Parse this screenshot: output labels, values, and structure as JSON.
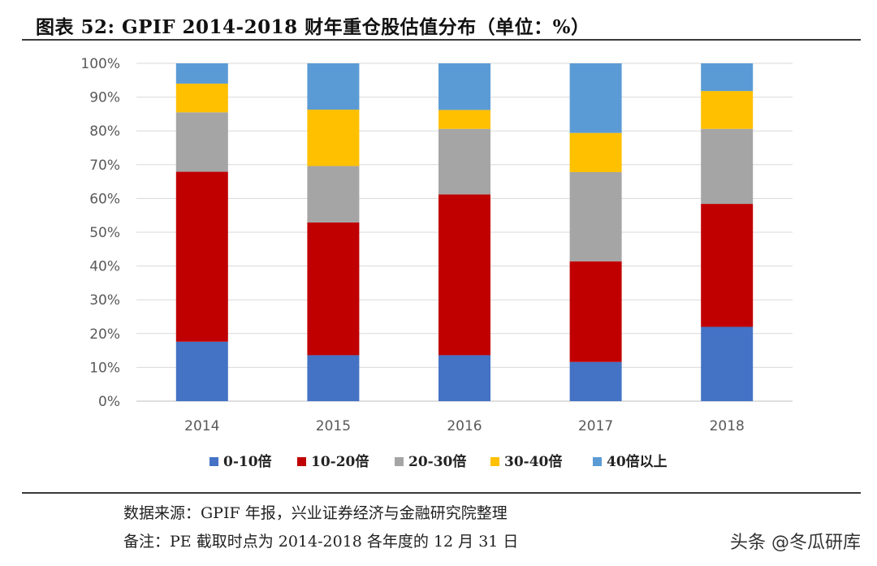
{
  "figure": {
    "title": "图表 52: GPIF 2014-2018 财年重仓股估值分布（单位：%）",
    "source": "数据来源：GPIF 年报，兴业证券经济与金融研究院整理",
    "note": "备注：PE 截取时点为 2014-2018 各年度的 12 月 31 日",
    "watermark": "头条 @冬瓜研库"
  },
  "chart_data": {
    "type": "bar",
    "stacked": true,
    "percent": true,
    "title": "",
    "xlabel": "",
    "ylabel": "",
    "categories": [
      "2014",
      "2015",
      "2016",
      "2017",
      "2018"
    ],
    "ylim": [
      0,
      100
    ],
    "yticks": [
      "0%",
      "10%",
      "20%",
      "30%",
      "40%",
      "50%",
      "60%",
      "70%",
      "80%",
      "90%",
      "100%"
    ],
    "grid": true,
    "legend_position": "bottom",
    "series": [
      {
        "name": "0-10倍",
        "color": "#4472C4",
        "values": [
          17.6,
          13.6,
          13.6,
          11.6,
          22.0
        ]
      },
      {
        "name": "10-20倍",
        "color": "#C00000",
        "values": [
          50.3,
          39.3,
          47.6,
          29.8,
          36.4
        ]
      },
      {
        "name": "20-30倍",
        "color": "#A5A5A5",
        "values": [
          17.6,
          16.7,
          19.4,
          26.4,
          22.2
        ]
      },
      {
        "name": "30-40倍",
        "color": "#FFC000",
        "values": [
          8.5,
          16.7,
          5.6,
          11.6,
          11.2
        ]
      },
      {
        "name": "40倍以上",
        "color": "#5B9BD5",
        "values": [
          6.0,
          13.7,
          13.8,
          20.6,
          8.2
        ]
      }
    ]
  }
}
